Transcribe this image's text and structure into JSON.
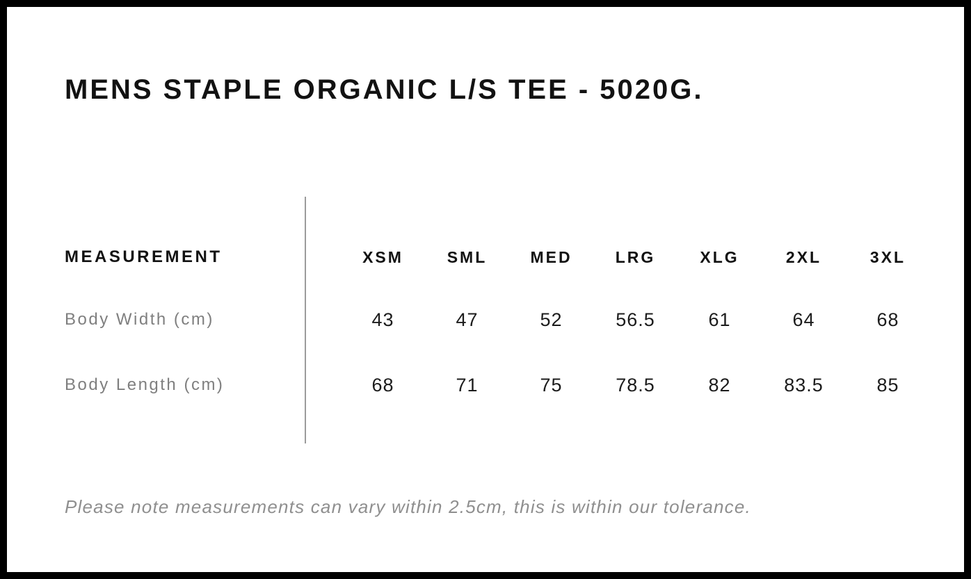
{
  "page": {
    "title": "MENS STAPLE ORGANIC L/S TEE - 5020G.",
    "footnote": "Please note measurements can vary within 2.5cm, this is within our tolerance."
  },
  "size_table": {
    "header": {
      "measurement_label": "MEASUREMENT",
      "sizes": [
        "XSM",
        "SML",
        "MED",
        "LRG",
        "XLG",
        "2XL",
        "3XL"
      ]
    },
    "rows": [
      {
        "label": "Body Width (cm)",
        "values": [
          "43",
          "47",
          "52",
          "56.5",
          "61",
          "64",
          "68"
        ]
      },
      {
        "label": "Body Length (cm)",
        "values": [
          "68",
          "71",
          "75",
          "78.5",
          "82",
          "83.5",
          "85"
        ]
      }
    ]
  },
  "colors": {
    "background": "#ffffff",
    "page_border": "#000000",
    "heading_text": "#121212",
    "value_text": "#1c1c1c",
    "muted_text": "#7f7f7f",
    "footnote_text": "#8f8f8f",
    "divider_line": "#9b9b9b"
  },
  "chart_data": {
    "type": "table",
    "title": "MENS STAPLE ORGANIC L/S TEE - 5020G.",
    "columns": [
      "MEASUREMENT",
      "XSM",
      "SML",
      "MED",
      "LRG",
      "XLG",
      "2XL",
      "3XL"
    ],
    "rows": [
      [
        "Body Width (cm)",
        43,
        47,
        52,
        56.5,
        61,
        64,
        68
      ],
      [
        "Body Length (cm)",
        68,
        71,
        75,
        78.5,
        82,
        83.5,
        85
      ]
    ],
    "note": "Please note measurements can vary within 2.5cm, this is within our tolerance."
  }
}
